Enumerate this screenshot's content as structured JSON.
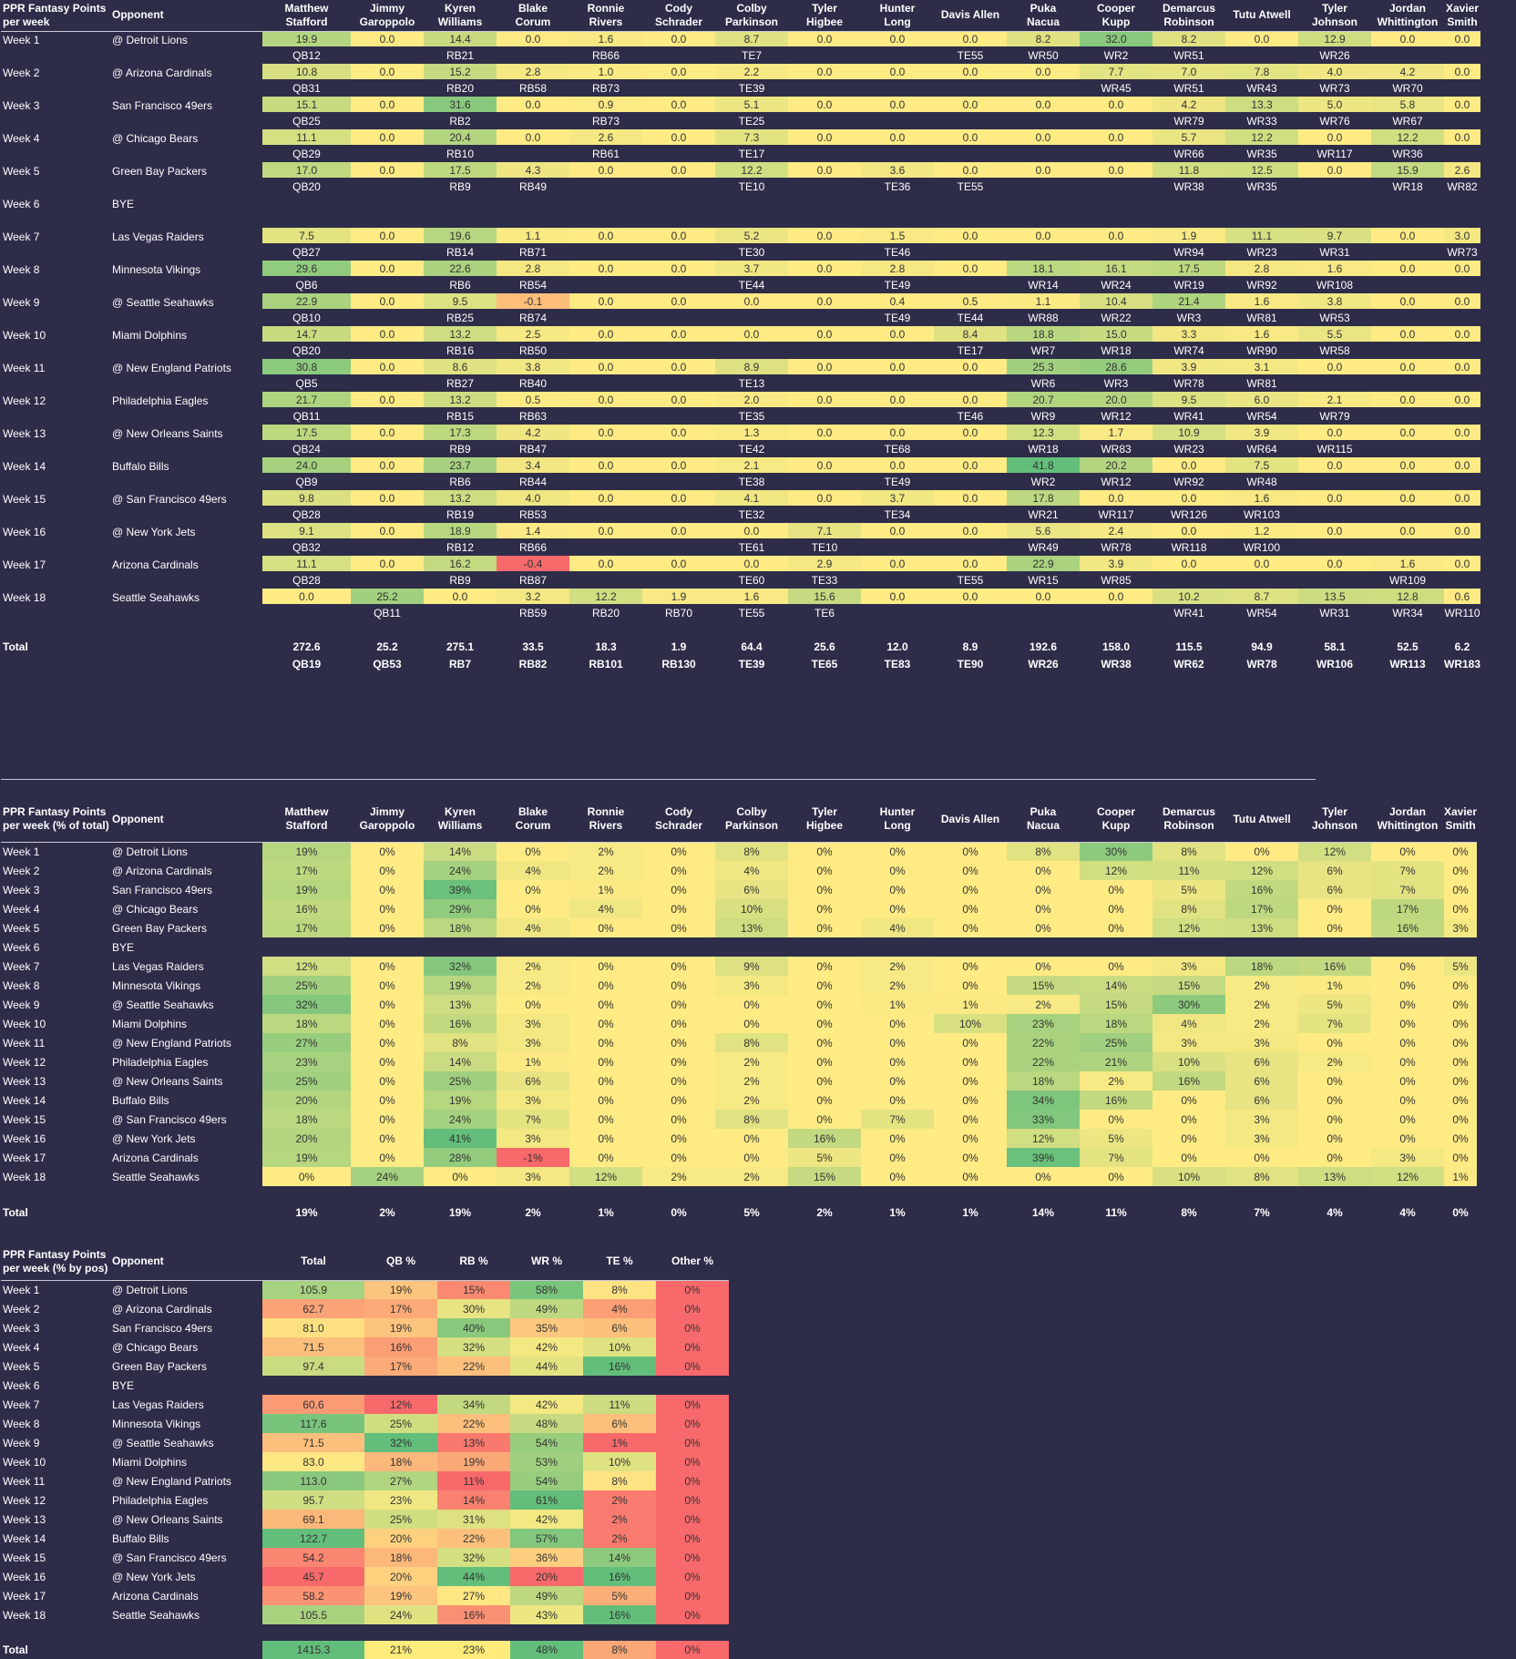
{
  "players": [
    {
      "first": "Matthew",
      "last": "Stafford"
    },
    {
      "first": "Jimmy",
      "last": "Garoppolo"
    },
    {
      "first": "Kyren",
      "last": "Williams"
    },
    {
      "first": "Blake",
      "last": "Corum"
    },
    {
      "first": "Ronnie",
      "last": "Rivers"
    },
    {
      "first": "Cody",
      "last": "Schrader"
    },
    {
      "first": "Colby",
      "last": "Parkinson"
    },
    {
      "first": "Tyler",
      "last": "Higbee"
    },
    {
      "first": "Hunter",
      "last": "Long"
    },
    {
      "first": "",
      "last": "Davis Allen"
    },
    {
      "first": "Puka",
      "last": "Nacua"
    },
    {
      "first": "Cooper",
      "last": "Kupp"
    },
    {
      "first": "Demarcus",
      "last": "Robinson"
    },
    {
      "first": "",
      "last": "Tutu Atwell"
    },
    {
      "first": "Tyler",
      "last": "Johnson"
    },
    {
      "first": "Jordan",
      "last": "Whittington"
    },
    {
      "first": "Xavier",
      "last": "Smith"
    }
  ],
  "weeks": [
    {
      "week": "Week 1",
      "opponent": "@ Detroit Lions"
    },
    {
      "week": "Week 2",
      "opponent": "@ Arizona Cardinals"
    },
    {
      "week": "Week 3",
      "opponent": "San Francisco 49ers"
    },
    {
      "week": "Week 4",
      "opponent": "@ Chicago Bears"
    },
    {
      "week": "Week 5",
      "opponent": "Green Bay Packers"
    },
    {
      "week": "Week 6",
      "opponent": "BYE",
      "bye": true
    },
    {
      "week": "Week 7",
      "opponent": "Las Vegas Raiders"
    },
    {
      "week": "Week 8",
      "opponent": "Minnesota Vikings"
    },
    {
      "week": "Week 9",
      "opponent": "@ Seattle Seahawks"
    },
    {
      "week": "Week 10",
      "opponent": "Miami Dolphins"
    },
    {
      "week": "Week 11",
      "opponent": "@ New England Patriots"
    },
    {
      "week": "Week 12",
      "opponent": "Philadelphia Eagles"
    },
    {
      "week": "Week 13",
      "opponent": "@ New Orleans Saints"
    },
    {
      "week": "Week 14",
      "opponent": "Buffalo Bills"
    },
    {
      "week": "Week 15",
      "opponent": "@ San Francisco 49ers"
    },
    {
      "week": "Week 16",
      "opponent": "@ New York Jets"
    },
    {
      "week": "Week 17",
      "opponent": "Arizona Cardinals"
    },
    {
      "week": "Week 18",
      "opponent": "Seattle Seahawks"
    }
  ],
  "table1": {
    "title_line1": "PPR Fantasy Points",
    "title_line2": "per week",
    "opponent_header": "Opponent",
    "points": [
      [
        "19.9",
        "0.0",
        "14.4",
        "0.0",
        "1.6",
        "0.0",
        "8.7",
        "0.0",
        "0.0",
        "0.0",
        "8.2",
        "32.0",
        "8.2",
        "0.0",
        "12.9",
        "0.0",
        "0.0"
      ],
      [
        "10.8",
        "0.0",
        "15.2",
        "2.8",
        "1.0",
        "0.0",
        "2.2",
        "0.0",
        "0.0",
        "0.0",
        "0.0",
        "7.7",
        "7.0",
        "7.8",
        "4.0",
        "4.2",
        "0.0"
      ],
      [
        "15.1",
        "0.0",
        "31.6",
        "0.0",
        "0.9",
        "0.0",
        "5.1",
        "0.0",
        "0.0",
        "0.0",
        "0.0",
        "0.0",
        "4.2",
        "13.3",
        "5.0",
        "5.8",
        "0.0"
      ],
      [
        "11.1",
        "0.0",
        "20.4",
        "0.0",
        "2.6",
        "0.0",
        "7.3",
        "0.0",
        "0.0",
        "0.0",
        "0.0",
        "0.0",
        "5.7",
        "12.2",
        "0.0",
        "12.2",
        "0.0"
      ],
      [
        "17.0",
        "0.0",
        "17.5",
        "4.3",
        "0.0",
        "0.0",
        "12.2",
        "0.0",
        "3.6",
        "0.0",
        "0.0",
        "0.0",
        "11.8",
        "12.5",
        "0.0",
        "15.9",
        "2.6"
      ],
      [],
      [
        "7.5",
        "0.0",
        "19.6",
        "1.1",
        "0.0",
        "0.0",
        "5.2",
        "0.0",
        "1.5",
        "0.0",
        "0.0",
        "0.0",
        "1.9",
        "11.1",
        "9.7",
        "0.0",
        "3.0"
      ],
      [
        "29.6",
        "0.0",
        "22.6",
        "2.8",
        "0.0",
        "0.0",
        "3.7",
        "0.0",
        "2.8",
        "0.0",
        "18.1",
        "16.1",
        "17.5",
        "2.8",
        "1.6",
        "0.0",
        "0.0"
      ],
      [
        "22.9",
        "0.0",
        "9.5",
        "-0.1",
        "0.0",
        "0.0",
        "0.0",
        "0.0",
        "0.4",
        "0.5",
        "1.1",
        "10.4",
        "21.4",
        "1.6",
        "3.8",
        "0.0",
        "0.0"
      ],
      [
        "14.7",
        "0.0",
        "13.2",
        "2.5",
        "0.0",
        "0.0",
        "0.0",
        "0.0",
        "0.0",
        "8.4",
        "18.8",
        "15.0",
        "3.3",
        "1.6",
        "5.5",
        "0.0",
        "0.0"
      ],
      [
        "30.8",
        "0.0",
        "8.6",
        "3.8",
        "0.0",
        "0.0",
        "8.9",
        "0.0",
        "0.0",
        "0.0",
        "25.3",
        "28.6",
        "3.9",
        "3.1",
        "0.0",
        "0.0",
        "0.0"
      ],
      [
        "21.7",
        "0.0",
        "13.2",
        "0.5",
        "0.0",
        "0.0",
        "2.0",
        "0.0",
        "0.0",
        "0.0",
        "20.7",
        "20.0",
        "9.5",
        "6.0",
        "2.1",
        "0.0",
        "0.0"
      ],
      [
        "17.5",
        "0.0",
        "17.3",
        "4.2",
        "0.0",
        "0.0",
        "1.3",
        "0.0",
        "0.0",
        "0.0",
        "12.3",
        "1.7",
        "10.9",
        "3.9",
        "0.0",
        "0.0",
        "0.0"
      ],
      [
        "24.0",
        "0.0",
        "23.7",
        "3.4",
        "0.0",
        "0.0",
        "2.1",
        "0.0",
        "0.0",
        "0.0",
        "41.8",
        "20.2",
        "0.0",
        "7.5",
        "0.0",
        "0.0",
        "0.0"
      ],
      [
        "9.8",
        "0.0",
        "13.2",
        "4.0",
        "0.0",
        "0.0",
        "4.1",
        "0.0",
        "3.7",
        "0.0",
        "17.8",
        "0.0",
        "0.0",
        "1.6",
        "0.0",
        "0.0",
        "0.0"
      ],
      [
        "9.1",
        "0.0",
        "18.9",
        "1.4",
        "0.0",
        "0.0",
        "0.0",
        "7.1",
        "0.0",
        "0.0",
        "5.6",
        "2.4",
        "0.0",
        "1.2",
        "0.0",
        "0.0",
        "0.0"
      ],
      [
        "11.1",
        "0.0",
        "16.2",
        "-0.4",
        "0.0",
        "0.0",
        "0.0",
        "2.9",
        "0.0",
        "0.0",
        "22.9",
        "3.9",
        "0.0",
        "0.0",
        "0.0",
        "1.6",
        "0.0"
      ],
      [
        "0.0",
        "25.2",
        "0.0",
        "3.2",
        "12.2",
        "1.9",
        "1.6",
        "15.6",
        "0.0",
        "0.0",
        "0.0",
        "0.0",
        "10.2",
        "8.7",
        "13.5",
        "12.8",
        "0.6"
      ]
    ],
    "ranks": [
      [
        "QB12",
        "",
        "RB21",
        "",
        "RB66",
        "",
        "TE7",
        "",
        "",
        "TE55",
        "WR50",
        "WR2",
        "WR51",
        "",
        "WR26",
        "",
        ""
      ],
      [
        "QB31",
        "",
        "RB20",
        "RB58",
        "RB73",
        "",
        "TE39",
        "",
        "",
        "",
        "",
        "WR45",
        "WR51",
        "WR43",
        "WR73",
        "WR70",
        ""
      ],
      [
        "QB25",
        "",
        "RB2",
        "",
        "RB73",
        "",
        "TE25",
        "",
        "",
        "",
        "",
        "",
        "WR79",
        "WR33",
        "WR76",
        "WR67",
        ""
      ],
      [
        "QB29",
        "",
        "RB10",
        "",
        "RB61",
        "",
        "TE17",
        "",
        "",
        "",
        "",
        "",
        "WR66",
        "WR35",
        "WR117",
        "WR36",
        ""
      ],
      [
        "QB20",
        "",
        "RB9",
        "RB49",
        "",
        "",
        "TE10",
        "",
        "TE36",
        "TE55",
        "",
        "",
        "WR38",
        "WR35",
        "",
        "WR18",
        "WR82"
      ],
      [],
      [
        "QB27",
        "",
        "RB14",
        "RB71",
        "",
        "",
        "TE30",
        "",
        "TE46",
        "",
        "",
        "",
        "WR94",
        "WR23",
        "WR31",
        "",
        "WR73"
      ],
      [
        "QB6",
        "",
        "RB6",
        "RB54",
        "",
        "",
        "TE44",
        "",
        "TE49",
        "",
        "WR14",
        "WR24",
        "WR19",
        "WR92",
        "WR108",
        "",
        ""
      ],
      [
        "QB10",
        "",
        "RB25",
        "RB74",
        "",
        "",
        "",
        "",
        "TE49",
        "TE44",
        "WR88",
        "WR22",
        "WR3",
        "WR81",
        "WR53",
        "",
        ""
      ],
      [
        "QB20",
        "",
        "RB16",
        "RB50",
        "",
        "",
        "",
        "",
        "",
        "TE17",
        "WR7",
        "WR18",
        "WR74",
        "WR90",
        "WR58",
        "",
        ""
      ],
      [
        "QB5",
        "",
        "RB27",
        "RB40",
        "",
        "",
        "TE13",
        "",
        "",
        "",
        "WR6",
        "WR3",
        "WR78",
        "WR81",
        "",
        "",
        ""
      ],
      [
        "QB11",
        "",
        "RB15",
        "RB63",
        "",
        "",
        "TE35",
        "",
        "",
        "TE46",
        "WR9",
        "WR12",
        "WR41",
        "WR54",
        "WR79",
        "",
        ""
      ],
      [
        "QB24",
        "",
        "RB9",
        "RB47",
        "",
        "",
        "TE42",
        "",
        "TE68",
        "",
        "WR18",
        "WR83",
        "WR23",
        "WR64",
        "WR115",
        "",
        ""
      ],
      [
        "QB9",
        "",
        "RB6",
        "RB44",
        "",
        "",
        "TE38",
        "",
        "TE49",
        "",
        "WR2",
        "WR12",
        "WR92",
        "WR48",
        "",
        "",
        ""
      ],
      [
        "QB28",
        "",
        "RB19",
        "RB53",
        "",
        "",
        "TE32",
        "",
        "TE34",
        "",
        "WR21",
        "WR117",
        "WR126",
        "WR103",
        "",
        "",
        ""
      ],
      [
        "QB32",
        "",
        "RB12",
        "RB66",
        "",
        "",
        "TE61",
        "TE10",
        "",
        "",
        "WR49",
        "WR78",
        "WR118",
        "WR100",
        "",
        "",
        ""
      ],
      [
        "QB28",
        "",
        "RB9",
        "RB87",
        "",
        "",
        "TE60",
        "TE33",
        "",
        "TE55",
        "WR15",
        "WR85",
        "",
        "",
        "",
        "WR109",
        ""
      ],
      [
        "",
        "QB11",
        "",
        "RB59",
        "RB20",
        "RB70",
        "TE55",
        "TE6",
        "",
        "",
        "",
        "",
        "WR41",
        "WR54",
        "WR31",
        "WR34",
        "WR110"
      ]
    ],
    "total_label": "Total",
    "totals": [
      "272.6",
      "25.2",
      "275.1",
      "33.5",
      "18.3",
      "1.9",
      "64.4",
      "25.6",
      "12.0",
      "8.9",
      "192.6",
      "158.0",
      "115.5",
      "94.9",
      "58.1",
      "52.5",
      "6.2"
    ],
    "total_ranks": [
      "QB19",
      "QB53",
      "RB7",
      "RB82",
      "RB101",
      "RB130",
      "TE39",
      "TE65",
      "TE83",
      "TE90",
      "WR26",
      "WR38",
      "WR62",
      "WR78",
      "WR106",
      "WR113",
      "WR183"
    ]
  },
  "table2": {
    "title_line1": "PPR Fantasy Points",
    "title_line2": "per week (% of total)",
    "opponent_header": "Opponent",
    "pcts": [
      [
        "19%",
        "0%",
        "14%",
        "0%",
        "2%",
        "0%",
        "8%",
        "0%",
        "0%",
        "0%",
        "8%",
        "30%",
        "8%",
        "0%",
        "12%",
        "0%",
        "0%"
      ],
      [
        "17%",
        "0%",
        "24%",
        "4%",
        "2%",
        "0%",
        "4%",
        "0%",
        "0%",
        "0%",
        "0%",
        "12%",
        "11%",
        "12%",
        "6%",
        "7%",
        "0%"
      ],
      [
        "19%",
        "0%",
        "39%",
        "0%",
        "1%",
        "0%",
        "6%",
        "0%",
        "0%",
        "0%",
        "0%",
        "0%",
        "5%",
        "16%",
        "6%",
        "7%",
        "0%"
      ],
      [
        "16%",
        "0%",
        "29%",
        "0%",
        "4%",
        "0%",
        "10%",
        "0%",
        "0%",
        "0%",
        "0%",
        "0%",
        "8%",
        "17%",
        "0%",
        "17%",
        "0%"
      ],
      [
        "17%",
        "0%",
        "18%",
        "4%",
        "0%",
        "0%",
        "13%",
        "0%",
        "4%",
        "0%",
        "0%",
        "0%",
        "12%",
        "13%",
        "0%",
        "16%",
        "3%"
      ],
      [],
      [
        "12%",
        "0%",
        "32%",
        "2%",
        "0%",
        "0%",
        "9%",
        "0%",
        "2%",
        "0%",
        "0%",
        "0%",
        "3%",
        "18%",
        "16%",
        "0%",
        "5%"
      ],
      [
        "25%",
        "0%",
        "19%",
        "2%",
        "0%",
        "0%",
        "3%",
        "0%",
        "2%",
        "0%",
        "15%",
        "14%",
        "15%",
        "2%",
        "1%",
        "0%",
        "0%"
      ],
      [
        "32%",
        "0%",
        "13%",
        "0%",
        "0%",
        "0%",
        "0%",
        "0%",
        "1%",
        "1%",
        "2%",
        "15%",
        "30%",
        "2%",
        "5%",
        "0%",
        "0%"
      ],
      [
        "18%",
        "0%",
        "16%",
        "3%",
        "0%",
        "0%",
        "0%",
        "0%",
        "0%",
        "10%",
        "23%",
        "18%",
        "4%",
        "2%",
        "7%",
        "0%",
        "0%"
      ],
      [
        "27%",
        "0%",
        "8%",
        "3%",
        "0%",
        "0%",
        "8%",
        "0%",
        "0%",
        "0%",
        "22%",
        "25%",
        "3%",
        "3%",
        "0%",
        "0%",
        "0%"
      ],
      [
        "23%",
        "0%",
        "14%",
        "1%",
        "0%",
        "0%",
        "2%",
        "0%",
        "0%",
        "0%",
        "22%",
        "21%",
        "10%",
        "6%",
        "2%",
        "0%",
        "0%"
      ],
      [
        "25%",
        "0%",
        "25%",
        "6%",
        "0%",
        "0%",
        "2%",
        "0%",
        "0%",
        "0%",
        "18%",
        "2%",
        "16%",
        "6%",
        "0%",
        "0%",
        "0%"
      ],
      [
        "20%",
        "0%",
        "19%",
        "3%",
        "0%",
        "0%",
        "2%",
        "0%",
        "0%",
        "0%",
        "34%",
        "16%",
        "0%",
        "6%",
        "0%",
        "0%",
        "0%"
      ],
      [
        "18%",
        "0%",
        "24%",
        "7%",
        "0%",
        "0%",
        "8%",
        "0%",
        "7%",
        "0%",
        "33%",
        "0%",
        "0%",
        "3%",
        "0%",
        "0%",
        "0%"
      ],
      [
        "20%",
        "0%",
        "41%",
        "3%",
        "0%",
        "0%",
        "0%",
        "16%",
        "0%",
        "0%",
        "12%",
        "5%",
        "0%",
        "3%",
        "0%",
        "0%",
        "0%"
      ],
      [
        "19%",
        "0%",
        "28%",
        "-1%",
        "0%",
        "0%",
        "0%",
        "5%",
        "0%",
        "0%",
        "39%",
        "7%",
        "0%",
        "0%",
        "0%",
        "3%",
        "0%"
      ],
      [
        "0%",
        "24%",
        "0%",
        "3%",
        "12%",
        "2%",
        "2%",
        "15%",
        "0%",
        "0%",
        "0%",
        "0%",
        "10%",
        "8%",
        "13%",
        "12%",
        "1%"
      ]
    ],
    "total_label": "Total",
    "totals": [
      "19%",
      "2%",
      "19%",
      "2%",
      "1%",
      "0%",
      "5%",
      "2%",
      "1%",
      "1%",
      "14%",
      "11%",
      "8%",
      "7%",
      "4%",
      "4%",
      "0%"
    ]
  },
  "table3": {
    "title_line1": "PPR Fantasy Points",
    "title_line2": "per week (% by pos)",
    "opponent_header": "Opponent",
    "headers": [
      "Total",
      "QB %",
      "RB %",
      "WR %",
      "TE %",
      "Other %"
    ],
    "rows": [
      [
        "105.9",
        "19%",
        "15%",
        "58%",
        "8%",
        "0%"
      ],
      [
        "62.7",
        "17%",
        "30%",
        "49%",
        "4%",
        "0%"
      ],
      [
        "81.0",
        "19%",
        "40%",
        "35%",
        "6%",
        "0%"
      ],
      [
        "71.5",
        "16%",
        "32%",
        "42%",
        "10%",
        "0%"
      ],
      [
        "97.4",
        "17%",
        "22%",
        "44%",
        "16%",
        "0%"
      ],
      [],
      [
        "60.6",
        "12%",
        "34%",
        "42%",
        "11%",
        "0%"
      ],
      [
        "117.6",
        "25%",
        "22%",
        "48%",
        "6%",
        "0%"
      ],
      [
        "71.5",
        "32%",
        "13%",
        "54%",
        "1%",
        "0%"
      ],
      [
        "83.0",
        "18%",
        "19%",
        "53%",
        "10%",
        "0%"
      ],
      [
        "113.0",
        "27%",
        "11%",
        "54%",
        "8%",
        "0%"
      ],
      [
        "95.7",
        "23%",
        "14%",
        "61%",
        "2%",
        "0%"
      ],
      [
        "69.1",
        "25%",
        "31%",
        "42%",
        "2%",
        "0%"
      ],
      [
        "122.7",
        "20%",
        "22%",
        "57%",
        "2%",
        "0%"
      ],
      [
        "54.2",
        "18%",
        "32%",
        "36%",
        "14%",
        "0%"
      ],
      [
        "45.7",
        "20%",
        "44%",
        "20%",
        "16%",
        "0%"
      ],
      [
        "58.2",
        "19%",
        "27%",
        "49%",
        "5%",
        "0%"
      ],
      [
        "105.5",
        "24%",
        "16%",
        "43%",
        "16%",
        "0%"
      ]
    ],
    "total_label": "Total",
    "totals": [
      "1415.3",
      "21%",
      "23%",
      "48%",
      "8%",
      "0%"
    ]
  },
  "colors": {
    "background": "#2d2c49",
    "scale_low": "#f8696b",
    "scale_mid": "#ffeb84",
    "scale_high": "#63be7b",
    "neutral_yellow": "#fdeb7c"
  }
}
